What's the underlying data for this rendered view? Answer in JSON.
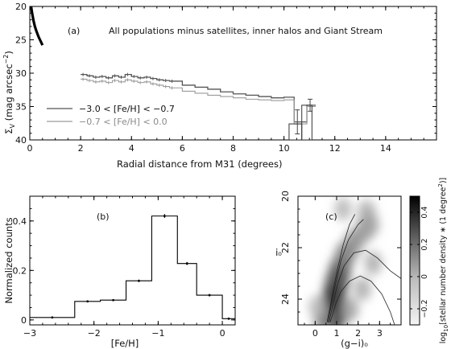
{
  "chart_data": [
    {
      "panel": "(a)",
      "type": "line",
      "title": "All populations minus satellites, inner halos and Giant Stream",
      "xlabel": "Radial distance from M31 (degrees)",
      "ylabel": "Σ_V (mag arcsec⁻²)",
      "ylabel_parts": {
        "sym": "Σ",
        "sub": "V",
        "pre": "(mag arcsec",
        "sup": "−2",
        "post": ")"
      },
      "xlim": [
        0,
        16
      ],
      "ylim": [
        40,
        20
      ],
      "y_inverted": true,
      "xticks": [
        0,
        2,
        4,
        6,
        8,
        10,
        12,
        14
      ],
      "xtick_labels": [
        "0",
        "2",
        "4",
        "6",
        "8",
        "10",
        "12",
        "14"
      ],
      "yticks": [
        20,
        25,
        30,
        35,
        40
      ],
      "ytick_labels": [
        "20",
        "25",
        "30",
        "35",
        "40"
      ],
      "legend_position": "bottom-left",
      "legend": [
        {
          "label": "−3.0 < [Fe/H] < −0.7",
          "color": "#555555"
        },
        {
          "label": "−0.7 < [Fe/H] <  0.0",
          "color": "#9a9a9a"
        }
      ],
      "inner_profile": {
        "x": [
          0.0,
          0.05,
          0.1,
          0.15,
          0.2,
          0.25,
          0.3,
          0.35,
          0.4,
          0.45,
          0.5
        ],
        "y": [
          18.8,
          20.0,
          21.2,
          22.2,
          23.0,
          23.6,
          24.1,
          24.6,
          25.0,
          25.4,
          25.8
        ]
      },
      "series": [
        {
          "name": "−3.0 < [Fe/H] < −0.7",
          "color": "#555555",
          "x": [
            2.0,
            2.25,
            2.5,
            2.75,
            3.0,
            3.25,
            3.5,
            3.75,
            4.0,
            4.25,
            4.5,
            4.75,
            5.0,
            5.25,
            5.5,
            6.0,
            6.5,
            7.0,
            7.5,
            8.0,
            8.5,
            9.0,
            9.5,
            10.0,
            10.4,
            10.9
          ],
          "y": [
            30.2,
            30.4,
            30.6,
            30.5,
            30.7,
            30.4,
            30.6,
            30.2,
            30.5,
            30.7,
            30.6,
            30.8,
            31.0,
            31.1,
            31.2,
            31.8,
            32.1,
            32.4,
            32.8,
            33.1,
            33.3,
            33.5,
            33.7,
            33.6,
            37.3,
            34.8
          ]
        },
        {
          "name": "−0.7 < [Fe/H] <  0.0",
          "color": "#9a9a9a",
          "x": [
            2.0,
            2.25,
            2.5,
            2.75,
            3.0,
            3.25,
            3.5,
            3.75,
            4.0,
            4.25,
            4.5,
            4.75,
            5.0,
            5.25,
            5.5,
            6.0,
            6.5,
            7.0,
            7.5,
            8.0,
            8.5,
            9.0,
            9.5,
            10.0,
            10.4,
            10.9
          ],
          "y": [
            30.9,
            31.1,
            31.3,
            31.2,
            31.4,
            31.1,
            31.3,
            31.0,
            31.2,
            31.4,
            31.3,
            31.6,
            31.8,
            32.0,
            32.2,
            32.7,
            33.0,
            33.3,
            33.5,
            33.7,
            33.9,
            34.0,
            34.1,
            34.0,
            37.6,
            35.0
          ]
        }
      ],
      "errorbars": [
        {
          "x": 10.4,
          "y": 37.3,
          "err": 1.8
        },
        {
          "x": 10.9,
          "y": 34.8,
          "err": 0.9
        }
      ]
    },
    {
      "panel": "(b)",
      "type": "bar",
      "xlabel": "[Fe/H]",
      "ylabel": "Normalized counts",
      "xlim": [
        -3,
        0.2
      ],
      "ylim": [
        -0.02,
        0.5
      ],
      "xticks": [
        -3,
        -2,
        -1,
        0
      ],
      "xtick_labels": [
        "−3",
        "−2",
        "−1",
        "0"
      ],
      "yticks": [
        0,
        0.2,
        0.4
      ],
      "ytick_labels": [
        "0",
        "0.2",
        "0.4"
      ],
      "bin_edges": [
        -3.0,
        -2.3,
        -1.9,
        -1.5,
        -1.1,
        -0.7,
        -0.4,
        0.0,
        0.2
      ],
      "values": [
        0.01,
        0.075,
        0.08,
        0.158,
        0.42,
        0.228,
        0.1,
        0.005
      ],
      "errors": [
        0.0,
        0.0,
        0.004,
        0.005,
        0.008,
        0.006,
        0.004,
        0.0
      ]
    },
    {
      "panel": "(c)",
      "type": "heatmap",
      "xlabel": "(g−i)₀",
      "ylabel": "i₀",
      "xlim": [
        -0.8,
        4.0
      ],
      "ylim": [
        25,
        20
      ],
      "y_inverted": true,
      "xticks": [
        0,
        1,
        2,
        3
      ],
      "xtick_labels": [
        "0",
        "1",
        "2",
        "3"
      ],
      "yticks": [
        20,
        22,
        24
      ],
      "ytick_labels": [
        "20",
        "22",
        "24"
      ],
      "colorbar": {
        "label": "log₁₀[stellar number density ∗ (1 degree²)]",
        "label_parts": {
          "pre": "log",
          "sub": "10",
          "mid": "[stellar number density ∗ (1 degree",
          "sup": "2",
          "post": ")]"
        },
        "range": [
          -0.3,
          0.5
        ],
        "ticks": [
          0.4,
          0.2,
          0,
          -0.2
        ],
        "tick_labels": [
          "0.4",
          "0.2",
          "0",
          "−0.2"
        ]
      },
      "isochrones": [
        {
          "name": "iso1",
          "points": [
            [
              0.55,
              24.9
            ],
            [
              0.7,
              24.3
            ],
            [
              0.85,
              23.6
            ],
            [
              1.05,
              22.8
            ],
            [
              1.3,
              21.9
            ],
            [
              1.6,
              21.1
            ],
            [
              1.85,
              20.7
            ]
          ]
        },
        {
          "name": "iso2",
          "points": [
            [
              0.6,
              24.9
            ],
            [
              0.75,
              24.2
            ],
            [
              0.95,
              23.4
            ],
            [
              1.2,
              22.5
            ],
            [
              1.55,
              21.7
            ],
            [
              2.0,
              21.1
            ],
            [
              2.25,
              20.9
            ]
          ]
        },
        {
          "name": "iso3",
          "points": [
            [
              0.65,
              24.9
            ],
            [
              0.85,
              24.1
            ],
            [
              1.05,
              23.4
            ],
            [
              1.35,
              22.7
            ],
            [
              1.8,
              22.2
            ],
            [
              2.35,
              22.1
            ],
            [
              2.9,
              22.4
            ],
            [
              3.5,
              22.9
            ],
            [
              4.0,
              23.2
            ]
          ]
        },
        {
          "name": "iso4",
          "points": [
            [
              0.7,
              24.9
            ],
            [
              0.95,
              24.2
            ],
            [
              1.2,
              23.7
            ],
            [
              1.6,
              23.3
            ],
            [
              2.1,
              23.1
            ],
            [
              2.6,
              23.3
            ],
            [
              3.1,
              23.8
            ],
            [
              3.5,
              24.5
            ],
            [
              3.7,
              25.0
            ]
          ]
        }
      ],
      "density_blobs": [
        {
          "x": 0.9,
          "y": 24.6,
          "w": 1.0
        },
        {
          "x": 0.85,
          "y": 24.0,
          "w": 0.9
        },
        {
          "x": 1.0,
          "y": 23.4,
          "w": 0.8
        },
        {
          "x": 1.15,
          "y": 22.9,
          "w": 0.7
        },
        {
          "x": 1.4,
          "y": 22.3,
          "w": 0.55
        },
        {
          "x": 1.8,
          "y": 21.8,
          "w": 0.45
        },
        {
          "x": 2.3,
          "y": 21.3,
          "w": 0.4
        },
        {
          "x": 2.4,
          "y": 20.6,
          "w": 0.3
        },
        {
          "x": 2.55,
          "y": 21.1,
          "w": 0.35
        },
        {
          "x": 0.4,
          "y": 24.8,
          "w": 0.5
        },
        {
          "x": 1.6,
          "y": 24.4,
          "w": 0.35
        },
        {
          "x": 2.2,
          "y": 23.6,
          "w": 0.3
        },
        {
          "x": 2.7,
          "y": 22.6,
          "w": 0.3
        },
        {
          "x": 1.3,
          "y": 20.5,
          "w": 0.25
        },
        {
          "x": 0.1,
          "y": 24.3,
          "w": 0.25
        }
      ]
    }
  ]
}
